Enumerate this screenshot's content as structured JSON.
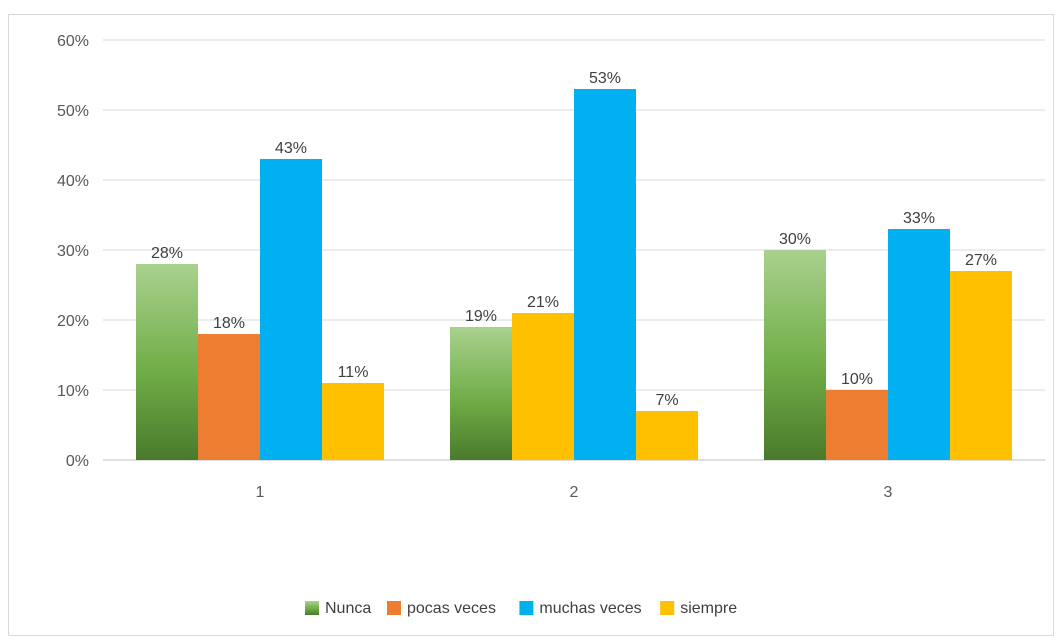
{
  "chart_data": {
    "type": "bar",
    "title": "",
    "xlabel": "",
    "ylabel": "",
    "categories": [
      "1",
      "2",
      "3"
    ],
    "ylim": [
      0,
      60
    ],
    "yticks": [
      "0%",
      "10%",
      "20%",
      "30%",
      "40%",
      "50%",
      "60%"
    ],
    "grid": true,
    "legend_position": "bottom",
    "series": [
      {
        "name": "Nunca",
        "color": "#70ad47",
        "gradient": true,
        "values": [
          28,
          19,
          30
        ],
        "labels": [
          "28%",
          "19%",
          "30%"
        ]
      },
      {
        "name": "pocas veces",
        "color": "#ed7d31",
        "values": [
          18,
          null,
          10
        ],
        "labels": [
          "18%",
          "",
          "10%"
        ]
      },
      {
        "name": "muchas veces",
        "color": "#00b0f0",
        "values": [
          43,
          53,
          33
        ],
        "labels": [
          "43%",
          "53%",
          "33%"
        ]
      },
      {
        "name": "siempre",
        "color": "#ffc000",
        "values": [
          11,
          null,
          27
        ],
        "labels": [
          "11%",
          "",
          "27%"
        ]
      }
    ],
    "extra_bars": [
      {
        "category": "2",
        "slot": 1,
        "color": "#ffc000",
        "value": 21,
        "label": "21%"
      },
      {
        "category": "2",
        "slot": 3,
        "color": "#ffc000",
        "value": 7,
        "label": "7%"
      }
    ]
  }
}
